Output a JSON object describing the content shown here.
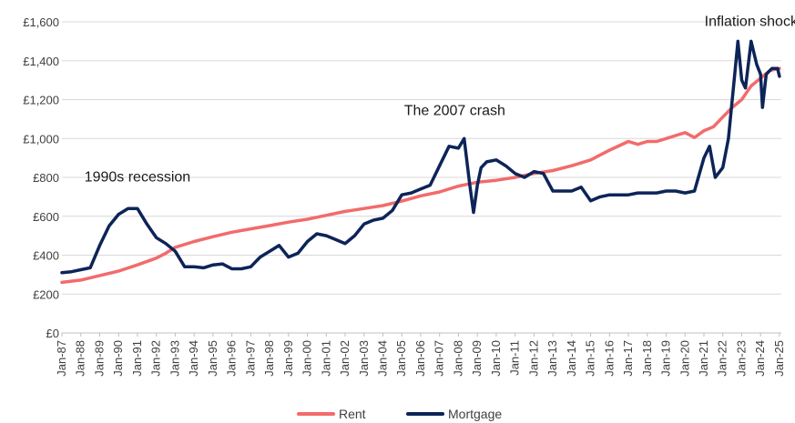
{
  "chart_data": {
    "type": "line",
    "title": "",
    "xlabel": "",
    "ylabel": "",
    "ylim": [
      0,
      1600
    ],
    "yticks": [
      0,
      200,
      400,
      600,
      800,
      1000,
      1200,
      1400,
      1600
    ],
    "ytick_labels": [
      "£0",
      "£200",
      "£400",
      "£600",
      "£800",
      "£1,000",
      "£1,200",
      "£1,400",
      "£1,600"
    ],
    "xlim": [
      1987.0,
      2025.1
    ],
    "xtick_labels": [
      "Jan-87",
      "Jan-88",
      "Jan-89",
      "Jan-90",
      "Jan-91",
      "Jan-92",
      "Jan-93",
      "Jan-94",
      "Jan-95",
      "Jan-96",
      "Jan-97",
      "Jan-98",
      "Jan-99",
      "Jan-00",
      "Jan-01",
      "Jan-02",
      "Jan-03",
      "Jan-04",
      "Jan-05",
      "Jan-06",
      "Jan-07",
      "Jan-08",
      "Jan-09",
      "Jan-10",
      "Jan-11",
      "Jan-12",
      "Jan-13",
      "Jan-14",
      "Jan-15",
      "Jan-16",
      "Jan-17",
      "Jan-18",
      "Jan-19",
      "Jan-20",
      "Jan-21",
      "Jan-22",
      "Jan-23",
      "Jan-24",
      "Jan-25"
    ],
    "grid": "horizontal",
    "legend": "bottom-center",
    "series": [
      {
        "name": "Rent",
        "color": "#f26b6b",
        "x": [
          1987.0,
          1988.0,
          1989.0,
          1990.0,
          1991.0,
          1992.0,
          1992.5,
          1993.0,
          1994.0,
          1995.0,
          1996.0,
          1997.0,
          1998.0,
          1999.0,
          2000.0,
          2001.0,
          2002.0,
          2003.0,
          2004.0,
          2005.0,
          2006.0,
          2007.0,
          2008.0,
          2009.0,
          2010.0,
          2011.0,
          2012.0,
          2013.0,
          2014.0,
          2015.0,
          2016.0,
          2017.0,
          2017.5,
          2018.0,
          2018.5,
          2019.0,
          2019.5,
          2020.0,
          2020.5,
          2021.0,
          2021.5,
          2022.0,
          2022.5,
          2023.0,
          2023.5,
          2024.0,
          2024.5,
          2025.0
        ],
        "values": [
          260,
          272,
          295,
          318,
          350,
          385,
          410,
          440,
          470,
          495,
          518,
          535,
          552,
          570,
          585,
          605,
          625,
          640,
          655,
          678,
          705,
          725,
          755,
          775,
          785,
          800,
          820,
          835,
          860,
          890,
          940,
          985,
          970,
          985,
          985,
          1000,
          1015,
          1030,
          1005,
          1040,
          1060,
          1110,
          1160,
          1200,
          1270,
          1310,
          1350,
          1360
        ]
      },
      {
        "name": "Mortgage",
        "color": "#0d2458",
        "x": [
          1987.0,
          1987.5,
          1988.0,
          1988.5,
          1989.0,
          1989.5,
          1990.0,
          1990.5,
          1991.0,
          1991.5,
          1992.0,
          1992.5,
          1993.0,
          1993.5,
          1994.0,
          1994.5,
          1995.0,
          1995.5,
          1996.0,
          1996.5,
          1997.0,
          1997.5,
          1998.0,
          1998.5,
          1999.0,
          1999.5,
          2000.0,
          2000.5,
          2001.0,
          2001.5,
          2002.0,
          2002.5,
          2003.0,
          2003.5,
          2004.0,
          2004.5,
          2005.0,
          2005.5,
          2006.0,
          2006.5,
          2007.0,
          2007.5,
          2008.0,
          2008.3,
          2008.6,
          2008.8,
          2009.0,
          2009.2,
          2009.5,
          2010.0,
          2010.5,
          2011.0,
          2011.5,
          2012.0,
          2012.5,
          2013.0,
          2013.5,
          2014.0,
          2014.5,
          2015.0,
          2015.5,
          2016.0,
          2016.5,
          2017.0,
          2017.5,
          2018.0,
          2018.5,
          2019.0,
          2019.5,
          2020.0,
          2020.5,
          2021.0,
          2021.3,
          2021.6,
          2022.0,
          2022.3,
          2022.6,
          2022.8,
          2023.0,
          2023.2,
          2023.5,
          2023.8,
          2024.0,
          2024.1,
          2024.3,
          2024.6,
          2024.9,
          2025.0
        ],
        "values": [
          310,
          315,
          325,
          335,
          450,
          550,
          610,
          640,
          640,
          560,
          490,
          460,
          420,
          340,
          340,
          335,
          350,
          355,
          330,
          330,
          340,
          390,
          420,
          450,
          390,
          410,
          470,
          510,
          500,
          480,
          460,
          500,
          560,
          580,
          590,
          630,
          710,
          720,
          740,
          760,
          860,
          960,
          950,
          1000,
          760,
          620,
          760,
          850,
          880,
          890,
          860,
          820,
          800,
          830,
          820,
          730,
          730,
          730,
          750,
          680,
          700,
          710,
          710,
          710,
          720,
          720,
          720,
          730,
          730,
          720,
          730,
          900,
          960,
          800,
          850,
          1000,
          1300,
          1500,
          1300,
          1260,
          1500,
          1380,
          1330,
          1160,
          1330,
          1360,
          1360,
          1320
        ]
      }
    ],
    "annotations": [
      {
        "text": "1990s recession",
        "x": 1991.0,
        "y": 780
      },
      {
        "text": "The 2007 crash",
        "x": 2007.8,
        "y": 1120
      },
      {
        "text": "Inflation shock",
        "x": 2023.5,
        "y": 1580
      }
    ]
  }
}
